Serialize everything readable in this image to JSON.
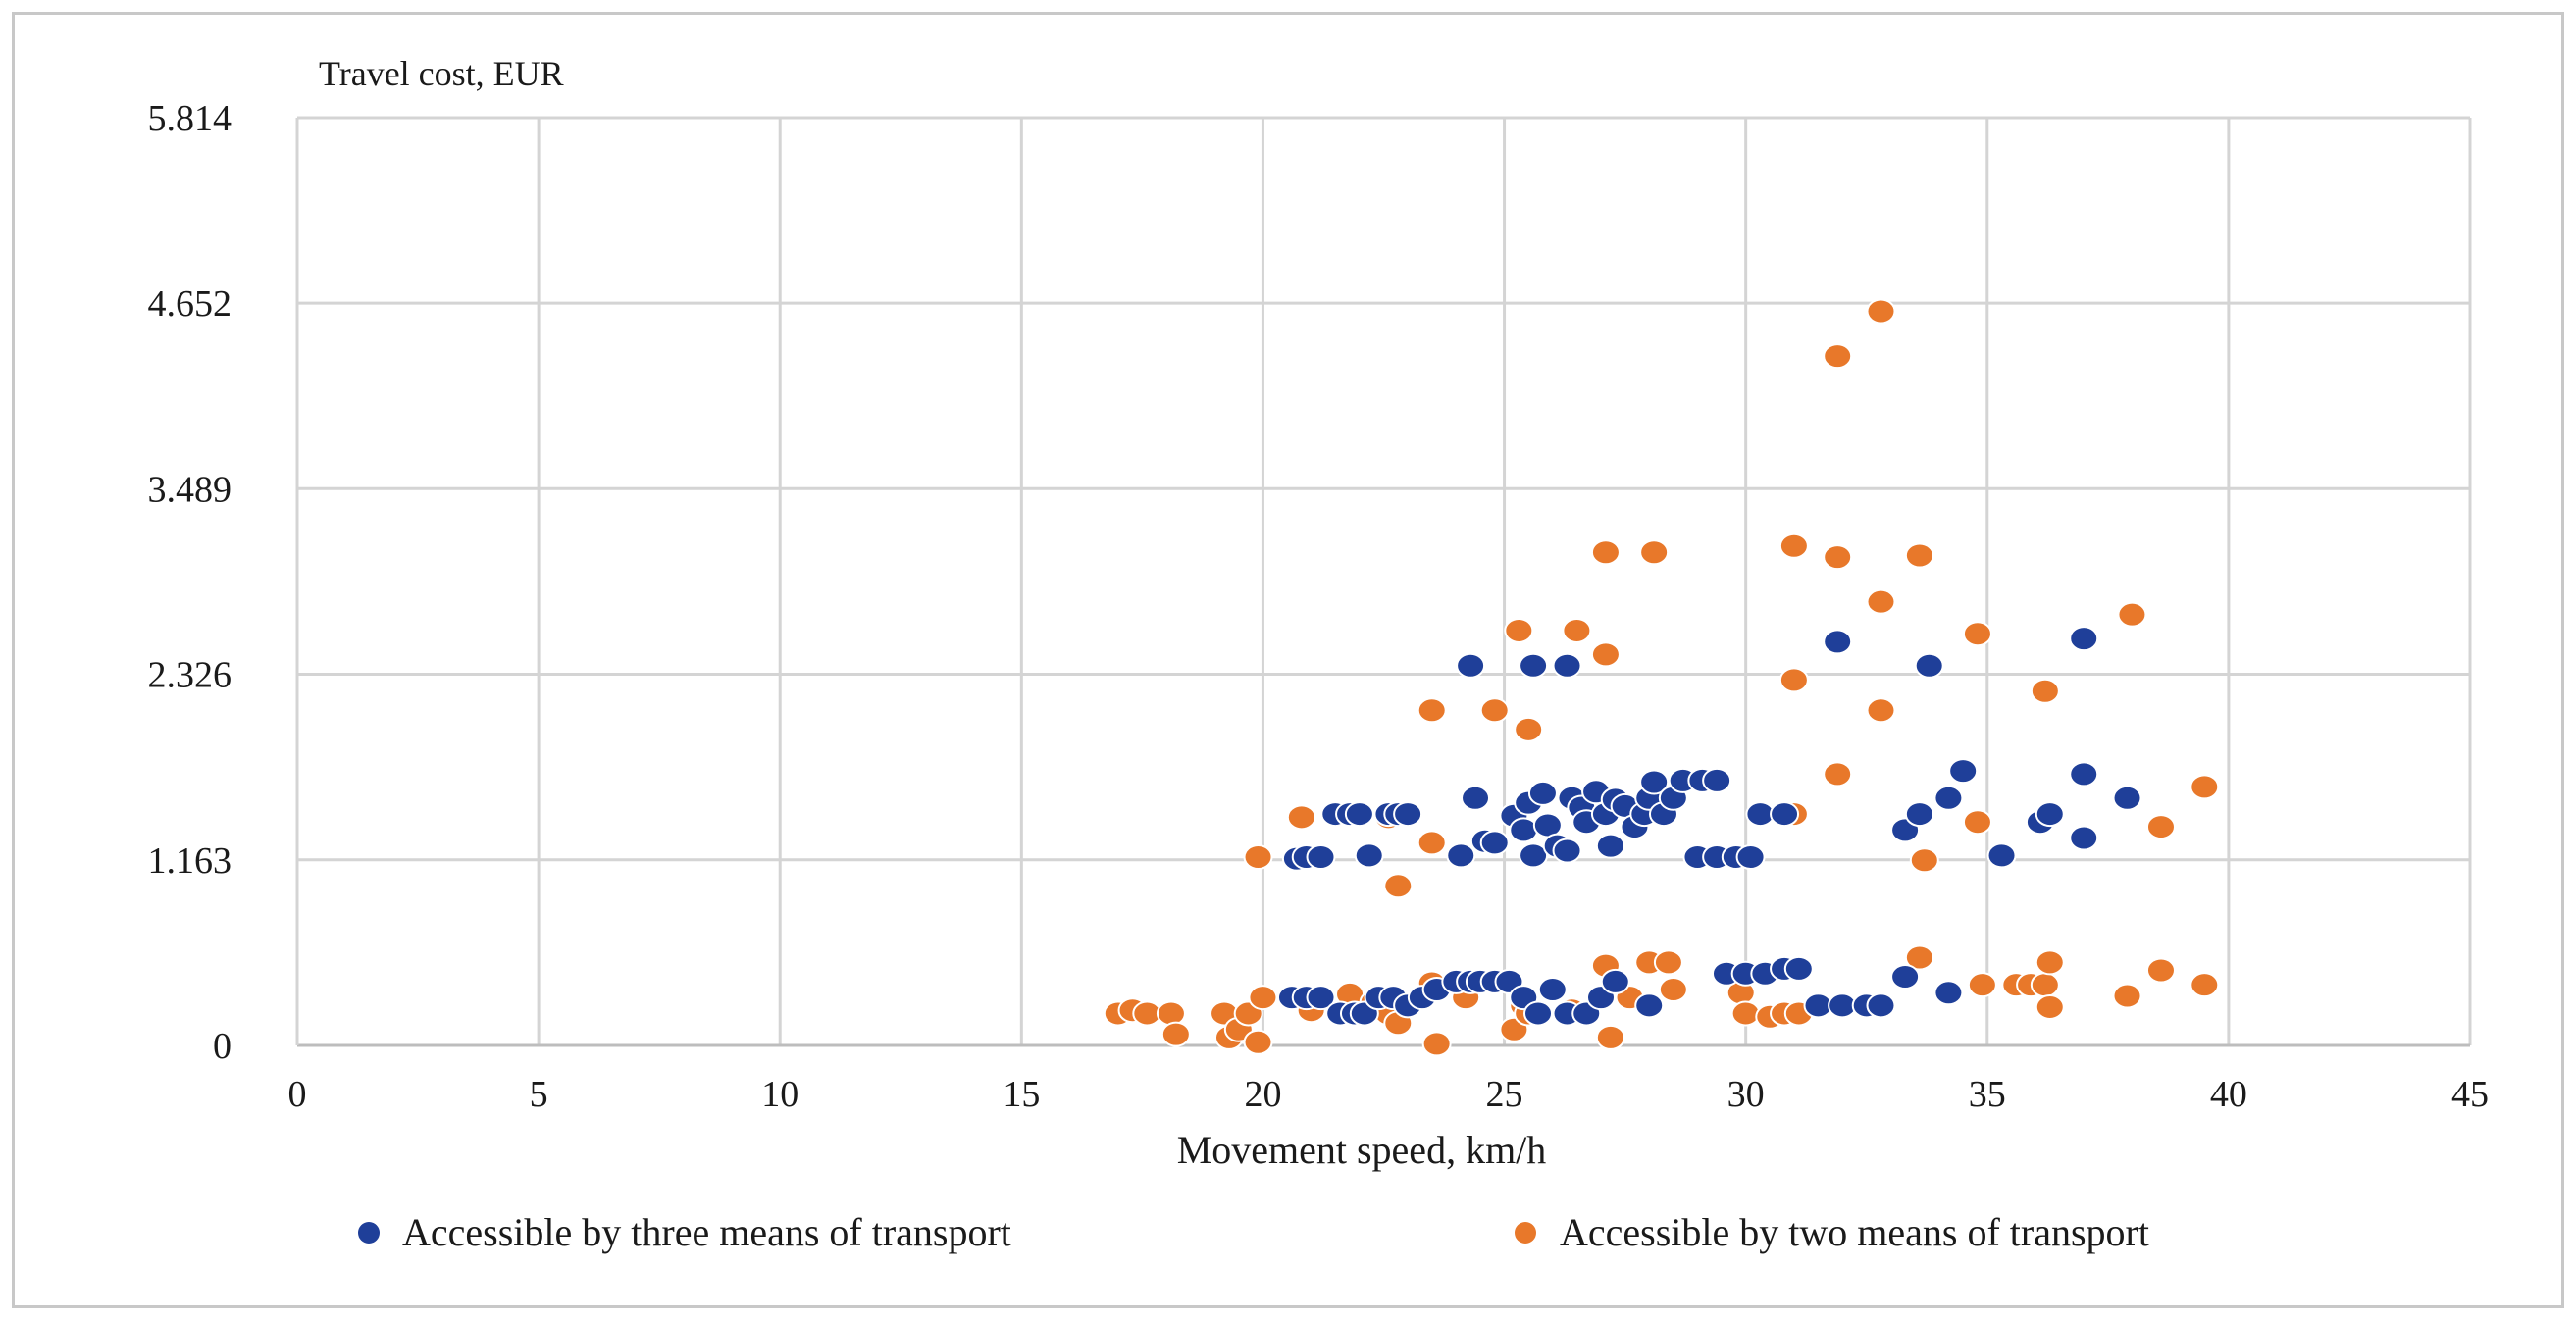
{
  "chart_data": {
    "type": "scatter",
    "title": "Travel cost, EUR",
    "xlabel": "Movement speed, km/h",
    "ylabel": "Travel cost, EUR",
    "xlim": [
      0,
      45
    ],
    "ylim": [
      0,
      5.814
    ],
    "x_ticks": [
      0,
      5,
      10,
      15,
      20,
      25,
      30,
      35,
      40,
      45
    ],
    "y_ticks": [
      0,
      1.163,
      2.326,
      3.489,
      4.652,
      5.814
    ],
    "y_tick_labels": [
      "0",
      "1.163",
      "2.326",
      "3.489",
      "4.652",
      "5.814"
    ],
    "grid": true,
    "legend_position": "bottom",
    "colors": {
      "three": "#1f3f99",
      "two": "#e8782a",
      "grid": "#d4d4d4",
      "axis": "#bdbdbd"
    },
    "series": [
      {
        "name": "Accessible by three means of transport",
        "color": "#1f3f99",
        "points": [
          [
            20.7,
            1.17
          ],
          [
            20.9,
            1.18
          ],
          [
            21.2,
            1.18
          ],
          [
            21.5,
            1.45
          ],
          [
            21.8,
            1.45
          ],
          [
            22.0,
            1.45
          ],
          [
            22.2,
            1.19
          ],
          [
            22.6,
            1.45
          ],
          [
            22.8,
            1.45
          ],
          [
            23.0,
            1.45
          ],
          [
            24.1,
            1.19
          ],
          [
            24.4,
            1.55
          ],
          [
            24.6,
            1.28
          ],
          [
            24.8,
            1.27
          ],
          [
            25.2,
            1.44
          ],
          [
            25.4,
            1.35
          ],
          [
            25.5,
            1.52
          ],
          [
            25.6,
            1.19
          ],
          [
            25.8,
            1.58
          ],
          [
            25.9,
            1.38
          ],
          [
            26.1,
            1.25
          ],
          [
            26.3,
            1.22
          ],
          [
            26.4,
            1.55
          ],
          [
            26.6,
            1.49
          ],
          [
            26.7,
            1.4
          ],
          [
            26.9,
            1.59
          ],
          [
            27.1,
            1.45
          ],
          [
            27.2,
            1.25
          ],
          [
            27.3,
            1.54
          ],
          [
            27.5,
            1.5
          ],
          [
            27.7,
            1.37
          ],
          [
            27.9,
            1.45
          ],
          [
            28.0,
            1.55
          ],
          [
            28.1,
            1.65
          ],
          [
            28.3,
            1.45
          ],
          [
            28.5,
            1.55
          ],
          [
            28.7,
            1.66
          ],
          [
            29.1,
            1.66
          ],
          [
            29.4,
            1.66
          ],
          [
            29.0,
            1.18
          ],
          [
            29.4,
            1.18
          ],
          [
            29.8,
            1.18
          ],
          [
            30.1,
            1.18
          ],
          [
            30.3,
            1.45
          ],
          [
            30.8,
            1.45
          ],
          [
            31.9,
            2.53
          ],
          [
            24.3,
            2.38
          ],
          [
            25.6,
            2.38
          ],
          [
            26.3,
            2.38
          ],
          [
            33.3,
            1.35
          ],
          [
            33.6,
            1.45
          ],
          [
            34.2,
            1.55
          ],
          [
            34.5,
            1.72
          ],
          [
            35.3,
            1.19
          ],
          [
            36.1,
            1.4
          ],
          [
            36.3,
            1.45
          ],
          [
            37.0,
            1.7
          ],
          [
            37.0,
            1.3
          ],
          [
            37.9,
            1.55
          ],
          [
            33.8,
            2.38
          ],
          [
            37.0,
            2.55
          ],
          [
            20.6,
            0.3
          ],
          [
            20.9,
            0.3
          ],
          [
            21.2,
            0.3
          ],
          [
            21.6,
            0.2
          ],
          [
            21.9,
            0.2
          ],
          [
            22.1,
            0.2
          ],
          [
            22.4,
            0.3
          ],
          [
            22.7,
            0.3
          ],
          [
            23.0,
            0.25
          ],
          [
            23.3,
            0.3
          ],
          [
            23.6,
            0.35
          ],
          [
            24.0,
            0.4
          ],
          [
            24.3,
            0.4
          ],
          [
            24.5,
            0.4
          ],
          [
            24.8,
            0.4
          ],
          [
            25.1,
            0.4
          ],
          [
            25.4,
            0.3
          ],
          [
            25.7,
            0.2
          ],
          [
            26.0,
            0.35
          ],
          [
            26.3,
            0.2
          ],
          [
            26.7,
            0.2
          ],
          [
            27.0,
            0.3
          ],
          [
            27.3,
            0.4
          ],
          [
            28.0,
            0.25
          ],
          [
            29.6,
            0.45
          ],
          [
            30.0,
            0.45
          ],
          [
            30.4,
            0.45
          ],
          [
            30.8,
            0.48
          ],
          [
            31.1,
            0.48
          ],
          [
            31.5,
            0.25
          ],
          [
            32.0,
            0.25
          ],
          [
            32.5,
            0.25
          ],
          [
            32.8,
            0.25
          ],
          [
            33.3,
            0.43
          ],
          [
            34.2,
            0.33
          ]
        ]
      },
      {
        "name": "Accessible by two means of transport",
        "color": "#e8782a",
        "points": [
          [
            32.8,
            4.6
          ],
          [
            31.9,
            4.32
          ],
          [
            27.1,
            3.09
          ],
          [
            28.1,
            3.09
          ],
          [
            31.0,
            3.13
          ],
          [
            31.9,
            3.06
          ],
          [
            33.6,
            3.07
          ],
          [
            32.8,
            2.78
          ],
          [
            25.3,
            2.6
          ],
          [
            26.5,
            2.6
          ],
          [
            27.1,
            2.45
          ],
          [
            34.8,
            2.58
          ],
          [
            38.0,
            2.7
          ],
          [
            31.0,
            2.29
          ],
          [
            36.2,
            2.22
          ],
          [
            23.5,
            2.1
          ],
          [
            24.8,
            2.1
          ],
          [
            25.5,
            1.98
          ],
          [
            32.8,
            2.1
          ],
          [
            31.9,
            1.7
          ],
          [
            39.5,
            1.62
          ],
          [
            20.8,
            1.43
          ],
          [
            22.6,
            1.43
          ],
          [
            31.0,
            1.45
          ],
          [
            34.8,
            1.4
          ],
          [
            38.6,
            1.37
          ],
          [
            23.5,
            1.27
          ],
          [
            33.7,
            1.16
          ],
          [
            19.9,
            1.18
          ],
          [
            22.8,
            1.0
          ],
          [
            17.0,
            0.2
          ],
          [
            17.3,
            0.22
          ],
          [
            17.6,
            0.2
          ],
          [
            18.1,
            0.2
          ],
          [
            18.2,
            0.07
          ],
          [
            19.2,
            0.2
          ],
          [
            19.3,
            0.05
          ],
          [
            19.5,
            0.1
          ],
          [
            19.7,
            0.2
          ],
          [
            19.9,
            0.02
          ],
          [
            20.0,
            0.3
          ],
          [
            21.0,
            0.22
          ],
          [
            21.8,
            0.32
          ],
          [
            22.3,
            0.27
          ],
          [
            22.6,
            0.2
          ],
          [
            22.8,
            0.14
          ],
          [
            23.5,
            0.39
          ],
          [
            23.6,
            0.01
          ],
          [
            24.2,
            0.3
          ],
          [
            24.8,
            0.4
          ],
          [
            25.2,
            0.1
          ],
          [
            25.4,
            0.25
          ],
          [
            25.5,
            0.2
          ],
          [
            26.4,
            0.22
          ],
          [
            27.1,
            0.5
          ],
          [
            27.2,
            0.05
          ],
          [
            27.6,
            0.3
          ],
          [
            28.0,
            0.52
          ],
          [
            28.4,
            0.52
          ],
          [
            28.5,
            0.35
          ],
          [
            29.9,
            0.33
          ],
          [
            30.0,
            0.2
          ],
          [
            30.5,
            0.18
          ],
          [
            30.8,
            0.2
          ],
          [
            31.1,
            0.2
          ],
          [
            33.6,
            0.55
          ],
          [
            34.9,
            0.38
          ],
          [
            35.6,
            0.38
          ],
          [
            35.9,
            0.38
          ],
          [
            36.2,
            0.38
          ],
          [
            36.3,
            0.52
          ],
          [
            36.3,
            0.24
          ],
          [
            37.9,
            0.31
          ],
          [
            38.6,
            0.47
          ],
          [
            39.5,
            0.38
          ]
        ]
      }
    ]
  }
}
